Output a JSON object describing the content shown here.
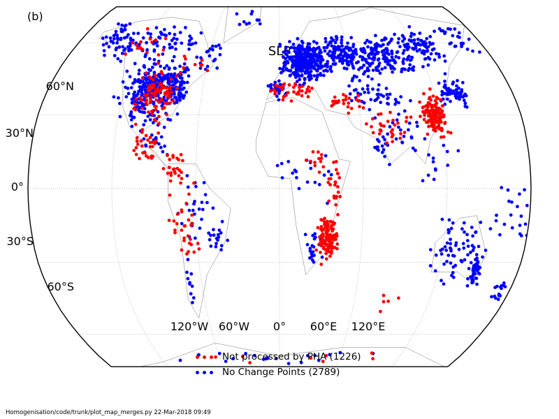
{
  "panel_label": "(b)",
  "title": "SLP",
  "lat_labels": [
    "60°N",
    "30°N",
    "0°",
    "30°S",
    "60°S"
  ],
  "lon_labels": [
    "120°W",
    "60°W",
    "0°",
    "60°E",
    "120°E"
  ],
  "legend": {
    "red": {
      "label": "Not processed by PHA (1226)",
      "color": "#ff0000"
    },
    "blue": {
      "label": "No Change Points (2789)",
      "color": "#0000ff"
    }
  },
  "footer": "Homogenisation/code/trunk/plot_map_merges.py   22-Mar-2018 09:49",
  "map_data": {
    "projection": "Robinson",
    "variable": "SLP",
    "counts": {
      "not_processed_by_pha": 1226,
      "no_change_points": 2789
    },
    "blue_clusters": [
      {
        "lon": -100,
        "lat": 40,
        "n": 260,
        "sl": 16,
        "sa": 9
      },
      {
        "lon": -80,
        "lat": 42,
        "n": 80,
        "sl": 6,
        "sa": 5
      },
      {
        "lon": -130,
        "lat": 58,
        "n": 50,
        "sl": 20,
        "sa": 6
      },
      {
        "lon": -100,
        "lat": 60,
        "n": 40,
        "sl": 20,
        "sa": 5
      },
      {
        "lon": -150,
        "lat": 63,
        "n": 30,
        "sl": 10,
        "sa": 4
      },
      {
        "lon": -60,
        "lat": 55,
        "n": 20,
        "sl": 10,
        "sa": 6
      },
      {
        "lon": -90,
        "lat": 18,
        "n": 15,
        "sl": 8,
        "sa": 4
      },
      {
        "lon": -60,
        "lat": -8,
        "n": 25,
        "sl": 10,
        "sa": 10
      },
      {
        "lon": -45,
        "lat": -20,
        "n": 18,
        "sl": 6,
        "sa": 5
      },
      {
        "lon": -68,
        "lat": -40,
        "n": 10,
        "sl": 3,
        "sa": 8
      },
      {
        "lon": -30,
        "lat": 70,
        "n": 10,
        "sl": 12,
        "sa": 4
      },
      {
        "lon": 20,
        "lat": 52,
        "n": 320,
        "sl": 12,
        "sa": 6
      },
      {
        "lon": 55,
        "lat": 55,
        "n": 150,
        "sl": 16,
        "sa": 5
      },
      {
        "lon": 90,
        "lat": 55,
        "n": 150,
        "sl": 20,
        "sa": 6
      },
      {
        "lon": 125,
        "lat": 58,
        "n": 70,
        "sl": 15,
        "sa": 6
      },
      {
        "lon": 160,
        "lat": 62,
        "n": 25,
        "sl": 10,
        "sa": 5
      },
      {
        "lon": 130,
        "lat": 40,
        "n": 40,
        "sl": 5,
        "sa": 4
      },
      {
        "lon": 140,
        "lat": 38,
        "n": 25,
        "sl": 3,
        "sa": 4
      },
      {
        "lon": 70,
        "lat": 38,
        "n": 40,
        "sl": 15,
        "sa": 6
      },
      {
        "lon": 90,
        "lat": 28,
        "n": 30,
        "sl": 15,
        "sa": 8
      },
      {
        "lon": 75,
        "lat": 18,
        "n": 15,
        "sl": 5,
        "sa": 6
      },
      {
        "lon": 110,
        "lat": 12,
        "n": 15,
        "sl": 12,
        "sa": 6
      },
      {
        "lon": 0,
        "lat": 40,
        "n": 30,
        "sl": 6,
        "sa": 3
      },
      {
        "lon": 20,
        "lat": 5,
        "n": 20,
        "sl": 15,
        "sa": 8
      },
      {
        "lon": 25,
        "lat": -25,
        "n": 20,
        "sl": 5,
        "sa": 6
      },
      {
        "lon": 130,
        "lat": -25,
        "n": 60,
        "sl": 12,
        "sa": 10
      },
      {
        "lon": 148,
        "lat": -33,
        "n": 50,
        "sl": 3,
        "sa": 5
      },
      {
        "lon": 172,
        "lat": -42,
        "n": 15,
        "sl": 3,
        "sa": 4
      },
      {
        "lon": 170,
        "lat": -10,
        "n": 15,
        "sl": 12,
        "sa": 10
      },
      {
        "lon": 0,
        "lat": -70,
        "n": 20,
        "sl": 90,
        "sa": 3
      },
      {
        "lon": 160,
        "lat": -15,
        "n": 8,
        "sl": 15,
        "sa": 5
      }
    ],
    "red_clusters": [
      {
        "lon": -95,
        "lat": 38,
        "n": 90,
        "sl": 12,
        "sa": 8
      },
      {
        "lon": -95,
        "lat": 18,
        "n": 30,
        "sl": 8,
        "sa": 5
      },
      {
        "lon": -75,
        "lat": 8,
        "n": 25,
        "sl": 8,
        "sa": 5
      },
      {
        "lon": -70,
        "lat": -15,
        "n": 30,
        "sl": 8,
        "sa": 12
      },
      {
        "lon": -115,
        "lat": 60,
        "n": 15,
        "sl": 15,
        "sa": 6
      },
      {
        "lon": -70,
        "lat": 52,
        "n": 8,
        "sl": 8,
        "sa": 5
      },
      {
        "lon": 10,
        "lat": 40,
        "n": 35,
        "sl": 15,
        "sa": 3
      },
      {
        "lon": 50,
        "lat": 35,
        "n": 25,
        "sl": 10,
        "sa": 3
      },
      {
        "lon": 115,
        "lat": 30,
        "n": 140,
        "sl": 6,
        "sa": 6
      },
      {
        "lon": 80,
        "lat": 25,
        "n": 30,
        "sl": 12,
        "sa": 5
      },
      {
        "lon": 35,
        "lat": -20,
        "n": 120,
        "sl": 5,
        "sa": 6
      },
      {
        "lon": 40,
        "lat": 0,
        "n": 20,
        "sl": 4,
        "sa": 5
      },
      {
        "lon": 30,
        "lat": 10,
        "n": 15,
        "sl": 8,
        "sa": 4
      },
      {
        "lon": 80,
        "lat": -45,
        "n": 5,
        "sl": 20,
        "sa": 5
      },
      {
        "lon": 0,
        "lat": -70,
        "n": 8,
        "sl": 90,
        "sa": 3
      }
    ]
  }
}
